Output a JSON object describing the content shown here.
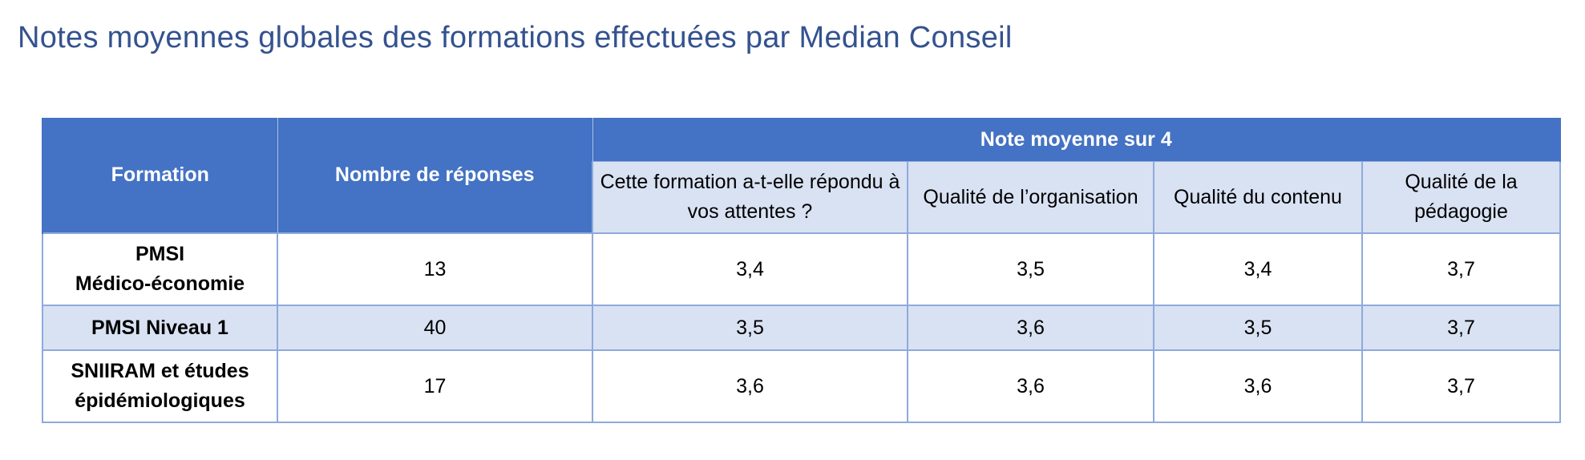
{
  "title": "Notes moyennes globales des formations effectuées par Median Conseil",
  "table": {
    "col_formation": "Formation",
    "col_responses": "Nombre de réponses",
    "group_header": "Note moyenne sur 4",
    "sub_headers": [
      "Cette formation a-t-elle répondu à vos attentes ?",
      "Qualité de l’organisation",
      "Qualité du contenu",
      "Qualité de la pédagogie"
    ],
    "rows": [
      {
        "formation_lines": [
          "PMSI",
          "Médico-économie"
        ],
        "responses": "13",
        "scores": [
          "3,4",
          "3,5",
          "3,4",
          "3,7"
        ]
      },
      {
        "formation_lines": [
          "PMSI Niveau 1"
        ],
        "responses": "40",
        "scores": [
          "3,5",
          "3,6",
          "3,5",
          "3,7"
        ]
      },
      {
        "formation_lines": [
          "SNIIRAM et études",
          "épidémiologiques"
        ],
        "responses": "17",
        "scores": [
          "3,6",
          "3,6",
          "3,6",
          "3,7"
        ]
      }
    ]
  },
  "colors": {
    "title": "#34528f",
    "header_blue": "#4472c4",
    "band_light": "#d9e2f3",
    "border": "#8eaadb"
  }
}
